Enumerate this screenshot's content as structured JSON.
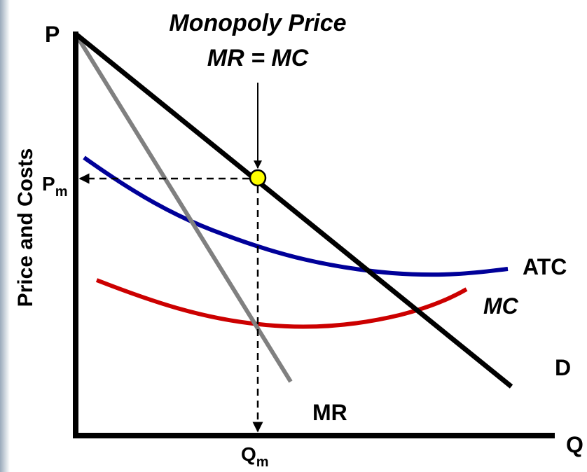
{
  "title": {
    "line1": "Monopoly Price",
    "line2": "MR = MC"
  },
  "axes": {
    "y_label": "Price and Costs",
    "y_end": "P",
    "x_end": "Q"
  },
  "points": {
    "price": {
      "main": "P",
      "sub": "m"
    },
    "quantity": {
      "main": "Q",
      "sub": "m"
    }
  },
  "curves": {
    "atc": "ATC",
    "mc": "MC",
    "demand": "D",
    "mr": "MR"
  }
}
